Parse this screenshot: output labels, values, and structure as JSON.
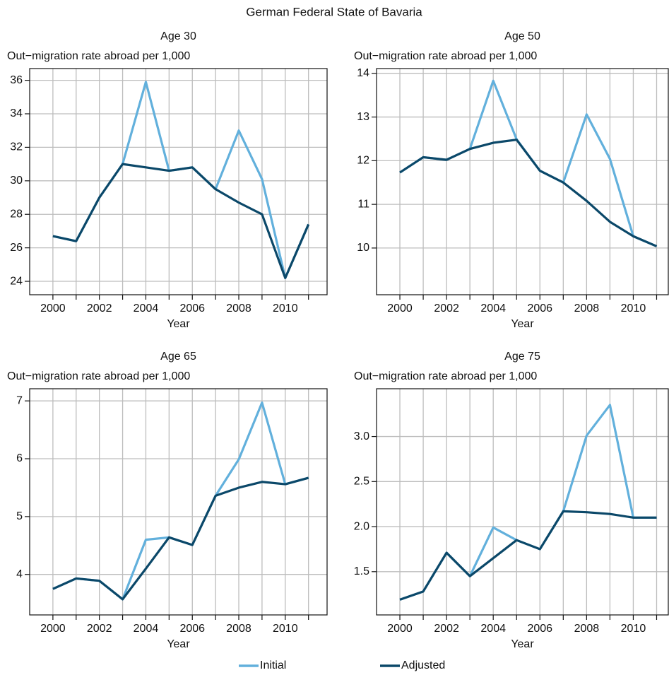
{
  "title": "German Federal State of Bavaria",
  "chart_data": [
    {
      "type": "line",
      "title": "Age 30",
      "ylabel": "Out−migration rate abroad per 1,000",
      "xlabel": "Year",
      "x": [
        2000,
        2001,
        2002,
        2003,
        2004,
        2005,
        2006,
        2007,
        2008,
        2009,
        2010,
        2011
      ],
      "xlim": [
        1999,
        2011.8
      ],
      "xticks": [
        2000,
        2002,
        2004,
        2006,
        2008,
        2010
      ],
      "xminor": [
        2001,
        2003,
        2005,
        2007,
        2009,
        2011
      ],
      "ylim": [
        23.2,
        36.7
      ],
      "yticks": [
        24,
        26,
        28,
        30,
        32,
        34,
        36
      ],
      "grid": true,
      "series": [
        {
          "name": "Initial",
          "color": "#62b0dc",
          "values": [
            26.7,
            26.4,
            29.0,
            31.0,
            35.9,
            30.6,
            30.8,
            29.5,
            33.0,
            30.1,
            24.2,
            27.4
          ]
        },
        {
          "name": "Adjusted",
          "color": "#0b4869",
          "values": [
            26.7,
            26.4,
            29.0,
            31.0,
            30.8,
            30.6,
            30.8,
            29.5,
            28.7,
            28.0,
            24.2,
            27.4
          ]
        }
      ]
    },
    {
      "type": "line",
      "title": "Age 50",
      "ylabel": "Out−migration rate abroad per 1,000",
      "xlabel": "Year",
      "x": [
        2000,
        2001,
        2002,
        2003,
        2004,
        2005,
        2006,
        2007,
        2008,
        2009,
        2010,
        2011
      ],
      "xlim": [
        1999,
        2011.5
      ],
      "xticks": [
        2000,
        2002,
        2004,
        2006,
        2008,
        2010
      ],
      "xminor": [
        2001,
        2003,
        2005,
        2007,
        2009,
        2011
      ],
      "ylim": [
        8.93,
        14.11
      ],
      "yticks": [
        10,
        11,
        12,
        13,
        14
      ],
      "grid": true,
      "series": [
        {
          "color": "#62b0dc",
          "values": [
            11.73,
            12.08,
            12.02,
            12.27,
            13.83,
            12.49,
            11.77,
            11.5,
            13.06,
            12.04,
            10.27,
            10.04
          ]
        },
        {
          "color": "#0b4869",
          "values": [
            11.73,
            12.08,
            12.02,
            12.27,
            12.41,
            12.48,
            11.77,
            11.5,
            11.08,
            10.6,
            10.27,
            10.04
          ]
        }
      ]
    },
    {
      "type": "line",
      "title": "Age 65",
      "ylabel": "Out−migration rate abroad per 1,000",
      "xlabel": "Year",
      "x": [
        2000,
        2001,
        2002,
        2003,
        2004,
        2005,
        2006,
        2007,
        2008,
        2009,
        2010,
        2011
      ],
      "xlim": [
        1999,
        2011.8
      ],
      "xticks": [
        2000,
        2002,
        2004,
        2006,
        2008,
        2010
      ],
      "xminor": [
        2001,
        2003,
        2005,
        2007,
        2009,
        2011
      ],
      "ylim": [
        3.3,
        7.21
      ],
      "yticks": [
        4,
        5,
        6,
        7
      ],
      "grid": true,
      "series": [
        {
          "color": "#62b0dc",
          "values": [
            3.75,
            3.93,
            3.89,
            3.57,
            4.6,
            4.64,
            4.51,
            5.36,
            5.99,
            6.97,
            5.56,
            5.67
          ]
        },
        {
          "color": "#0b4869",
          "values": [
            3.75,
            3.93,
            3.89,
            3.57,
            4.1,
            4.64,
            4.51,
            5.36,
            5.5,
            5.6,
            5.56,
            5.67
          ]
        }
      ]
    },
    {
      "type": "line",
      "title": "Age 75",
      "ylabel": "Out−migration rate abroad per 1,000",
      "xlabel": "Year",
      "x": [
        2000,
        2001,
        2002,
        2003,
        2004,
        2005,
        2006,
        2007,
        2008,
        2009,
        2010,
        2011
      ],
      "xlim": [
        1999,
        2011.5
      ],
      "xticks": [
        2000,
        2002,
        2004,
        2006,
        2008,
        2010
      ],
      "xminor": [
        2001,
        2003,
        2005,
        2007,
        2009,
        2011
      ],
      "ylim": [
        1.02,
        3.53
      ],
      "yticks": [
        1.5,
        {
          "value": 2,
          "label": "2.0"
        },
        2.5,
        {
          "value": 3,
          "label": "3.0"
        }
      ],
      "grid": true,
      "series": [
        {
          "color": "#62b0dc",
          "values": [
            1.19,
            1.28,
            1.71,
            1.45,
            1.99,
            1.85,
            1.75,
            2.17,
            3.01,
            3.35,
            2.1,
            2.1
          ]
        },
        {
          "color": "#0b4869",
          "values": [
            1.19,
            1.28,
            1.71,
            1.45,
            1.65,
            1.85,
            1.75,
            2.17,
            2.16,
            2.14,
            2.1,
            2.1
          ]
        }
      ]
    }
  ]
}
